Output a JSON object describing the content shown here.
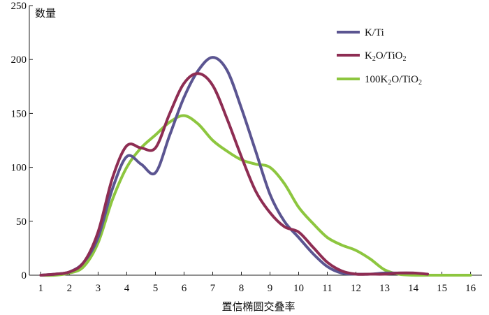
{
  "chart_data": {
    "type": "line",
    "title": "",
    "xlabel": "置信椭圆交叠率",
    "ylabel": "数量",
    "xlim": [
      0.6,
      16.4
    ],
    "ylim": [
      0,
      250
    ],
    "xticks": [
      1,
      2,
      3,
      4,
      5,
      6,
      7,
      8,
      9,
      10,
      11,
      12,
      13,
      14,
      15,
      16
    ],
    "yticks": [
      0,
      50,
      100,
      150,
      200,
      250
    ],
    "grid": false,
    "legend_position": "top-right",
    "series": [
      {
        "name": "K/Ti",
        "legend_parts": {
          "main": "K/Ti"
        },
        "color": "#5b5591",
        "x": [
          1,
          1.5,
          2,
          2.5,
          3,
          3.5,
          4,
          4.5,
          5,
          5.5,
          6,
          6.5,
          7,
          7.5,
          8,
          8.5,
          9,
          9.5,
          10,
          10.5,
          11,
          11.5,
          12,
          12.5,
          13,
          13.5,
          14
        ],
        "y": [
          0,
          1,
          3,
          12,
          35,
          80,
          110,
          103,
          95,
          130,
          165,
          190,
          202,
          190,
          155,
          115,
          75,
          50,
          35,
          20,
          8,
          2,
          1,
          1,
          2,
          2,
          2
        ]
      },
      {
        "name": "K2O/TiO2",
        "legend_parts": {
          "a": "K",
          "sub1": "2",
          "b": "O/TiO",
          "sub2": "2"
        },
        "color": "#8e2d53",
        "x": [
          1,
          1.5,
          2,
          2.5,
          3,
          3.5,
          4,
          4.5,
          5,
          5.5,
          6,
          6.5,
          7,
          7.5,
          8,
          8.5,
          9,
          9.5,
          10,
          10.5,
          11,
          11.5,
          12,
          12.5,
          13,
          13.5,
          14,
          14.5
        ],
        "y": [
          0,
          1,
          3,
          12,
          40,
          90,
          120,
          118,
          118,
          150,
          178,
          187,
          176,
          145,
          110,
          78,
          58,
          45,
          40,
          26,
          12,
          4,
          1,
          1,
          1,
          2,
          2,
          1
        ]
      },
      {
        "name": "100K2O/TiO2",
        "legend_parts": {
          "a": "100K",
          "sub1": "2",
          "b": "O/TiO",
          "sub2": "2"
        },
        "color": "#8dc63f",
        "x": [
          1,
          1.5,
          2,
          2.5,
          3,
          3.5,
          4,
          4.5,
          5,
          5.5,
          6,
          6.5,
          7,
          7.5,
          8,
          8.5,
          9,
          9.5,
          10,
          10.5,
          11,
          11.5,
          12,
          12.5,
          13,
          13.5,
          14,
          14.5,
          15,
          15.5,
          16
        ],
        "y": [
          0,
          0,
          2,
          8,
          30,
          70,
          100,
          118,
          130,
          142,
          148,
          140,
          125,
          115,
          107,
          103,
          100,
          85,
          63,
          48,
          35,
          28,
          23,
          15,
          5,
          1,
          0,
          0,
          0,
          0,
          0
        ]
      }
    ]
  }
}
